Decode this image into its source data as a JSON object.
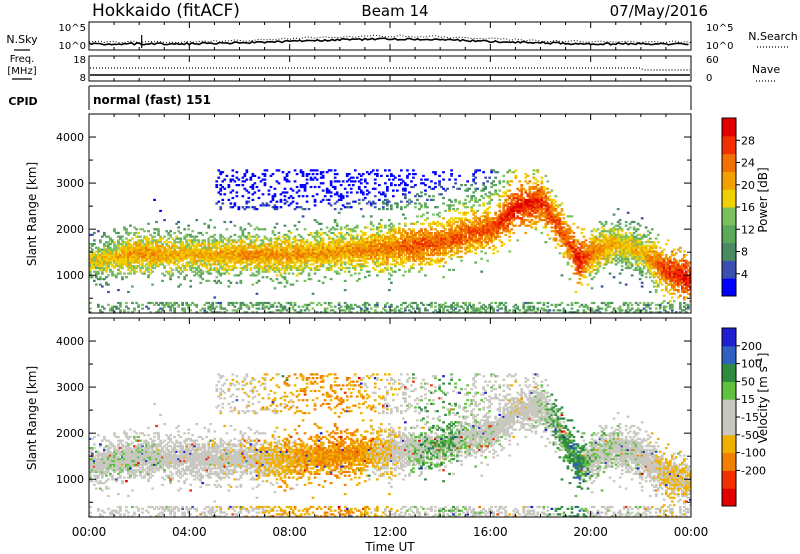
{
  "header": {
    "station": "Hokkaido (fitACF)",
    "beam": "Beam 14",
    "date": "07/May/2016"
  },
  "top_panels": {
    "nsky_label": "N.Sky",
    "nsearch_label": "N.Search",
    "nsky_ticks": [
      "10^5",
      "10^0"
    ],
    "nsearch_ticks": [
      "10^5",
      "10^0"
    ],
    "freq_label_1": "Freq.",
    "freq_label_2": "[MHz]",
    "freq_ticks": [
      "18",
      "8"
    ],
    "nave_label": "Nave",
    "nave_ticks": [
      "60",
      "0"
    ],
    "cpid_label": "CPID",
    "cpid_value": "normal (fast) 151"
  },
  "colors": {
    "power": [
      "#0000ff",
      "#3a4fb0",
      "#4a8a62",
      "#5aa85a",
      "#7cc060",
      "#f0d000",
      "#f0a000",
      "#f07000",
      "#f03000",
      "#e00000"
    ],
    "velocity": [
      "#e00000",
      "#f03000",
      "#f08000",
      "#f0b000",
      "#c8c8c0",
      "#c8c8c0",
      "#60c040",
      "#2e8b40",
      "#3060c0",
      "#2020d0"
    ]
  },
  "chart_data": [
    {
      "type": "heatmap",
      "title": "Power",
      "ylabel": "Slant Range [km]",
      "ylim": [
        180,
        4500
      ],
      "yticks": [
        "1000",
        "2000",
        "3000",
        "4000"
      ],
      "xlabel": "",
      "xlim": [
        "00:00",
        "24:00"
      ],
      "colorbar": {
        "label": "Power [dB]",
        "ticks": [
          "4",
          "8",
          "12",
          "16",
          "20",
          "24",
          "28"
        ],
        "range": [
          0,
          32
        ]
      },
      "echo_band": {
        "time_hours": [
          0,
          2,
          4,
          6,
          8,
          10,
          12,
          13,
          14,
          15,
          16,
          17,
          18,
          19,
          19.5,
          20,
          21,
          22,
          23,
          24
        ],
        "center_range_km": [
          1300,
          1500,
          1450,
          1450,
          1450,
          1500,
          1600,
          1650,
          1700,
          1900,
          2000,
          2500,
          2600,
          1800,
          1300,
          1500,
          1700,
          1500,
          1100,
          900
        ],
        "peak_power_db": [
          18,
          22,
          20,
          22,
          22,
          22,
          24,
          26,
          26,
          26,
          26,
          30,
          28,
          26,
          30,
          24,
          20,
          20,
          28,
          30
        ]
      }
    },
    {
      "type": "heatmap",
      "title": "Velocity",
      "ylabel": "Slant Range [km]",
      "ylim": [
        180,
        4500
      ],
      "yticks": [
        "1000",
        "2000",
        "3000",
        "4000"
      ],
      "xlabel": "Time UT",
      "xticks": [
        "00:00",
        "04:00",
        "08:00",
        "12:00",
        "16:00",
        "20:00",
        "00:00"
      ],
      "colorbar": {
        "label": "Velocity [m s^-1]",
        "ticks": [
          "200",
          "100",
          "50",
          "15",
          "-15",
          "-50",
          "-100",
          "-200"
        ],
        "range": [
          -250,
          250
        ]
      },
      "echo_band": {
        "time_hours": [
          0,
          2,
          4,
          6,
          8,
          10,
          12,
          13,
          14,
          15,
          16,
          17,
          18,
          19,
          19.5,
          20,
          21,
          22,
          23,
          24
        ],
        "center_range_km": [
          1300,
          1500,
          1450,
          1450,
          1450,
          1500,
          1600,
          1650,
          1700,
          1900,
          2000,
          2500,
          2600,
          1800,
          1300,
          1500,
          1700,
          1500,
          1100,
          900
        ],
        "velocity_ms": [
          0,
          0,
          -5,
          -10,
          -40,
          -60,
          -20,
          10,
          20,
          5,
          0,
          -10,
          0,
          30,
          40,
          10,
          0,
          0,
          -30,
          -20
        ]
      }
    }
  ]
}
